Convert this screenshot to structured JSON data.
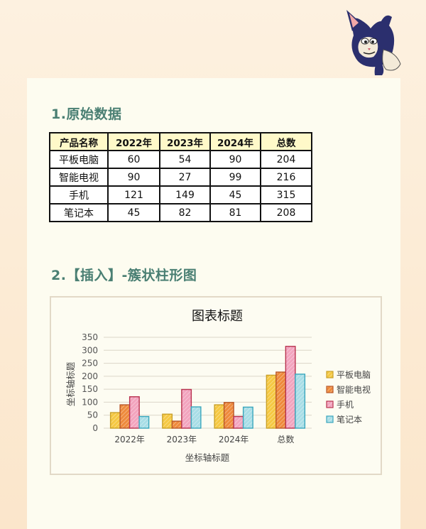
{
  "sections": {
    "raw_title": "1.原始数据",
    "chart_title": "2.【插入】-簇状柱形图"
  },
  "table": {
    "headers": [
      "产品名称",
      "2022年",
      "2023年",
      "2024年",
      "总数"
    ],
    "rows": [
      [
        "平板电脑",
        "60",
        "54",
        "90",
        "204"
      ],
      [
        "智能电视",
        "90",
        "27",
        "99",
        "216"
      ],
      [
        "手机",
        "121",
        "149",
        "45",
        "315"
      ],
      [
        "笔记本",
        "45",
        "82",
        "81",
        "208"
      ]
    ]
  },
  "chart_data": {
    "type": "bar",
    "title": "图表标题",
    "xlabel": "坐标轴标题",
    "ylabel": "坐标轴标题",
    "categories": [
      "2022年",
      "2023年",
      "2024年",
      "总数"
    ],
    "ylim": [
      0,
      350
    ],
    "yticks": [
      0,
      50,
      100,
      150,
      200,
      250,
      300,
      350
    ],
    "grid": true,
    "legend_position": "right",
    "series": [
      {
        "name": "平板电脑",
        "values": [
          60,
          54,
          90,
          204
        ],
        "color": "#f5c842",
        "edge": "#c9a12a"
      },
      {
        "name": "智能电视",
        "values": [
          90,
          27,
          99,
          216
        ],
        "color": "#ee8a3c",
        "edge": "#b9582a"
      },
      {
        "name": "手机",
        "values": [
          121,
          149,
          45,
          315
        ],
        "color": "#f2a4be",
        "edge": "#b8324f"
      },
      {
        "name": "笔记本",
        "values": [
          45,
          82,
          81,
          208
        ],
        "color": "#a8dde6",
        "edge": "#3aa7bd"
      }
    ]
  },
  "icons": {
    "mascot": "cartoon-cat-icon"
  }
}
